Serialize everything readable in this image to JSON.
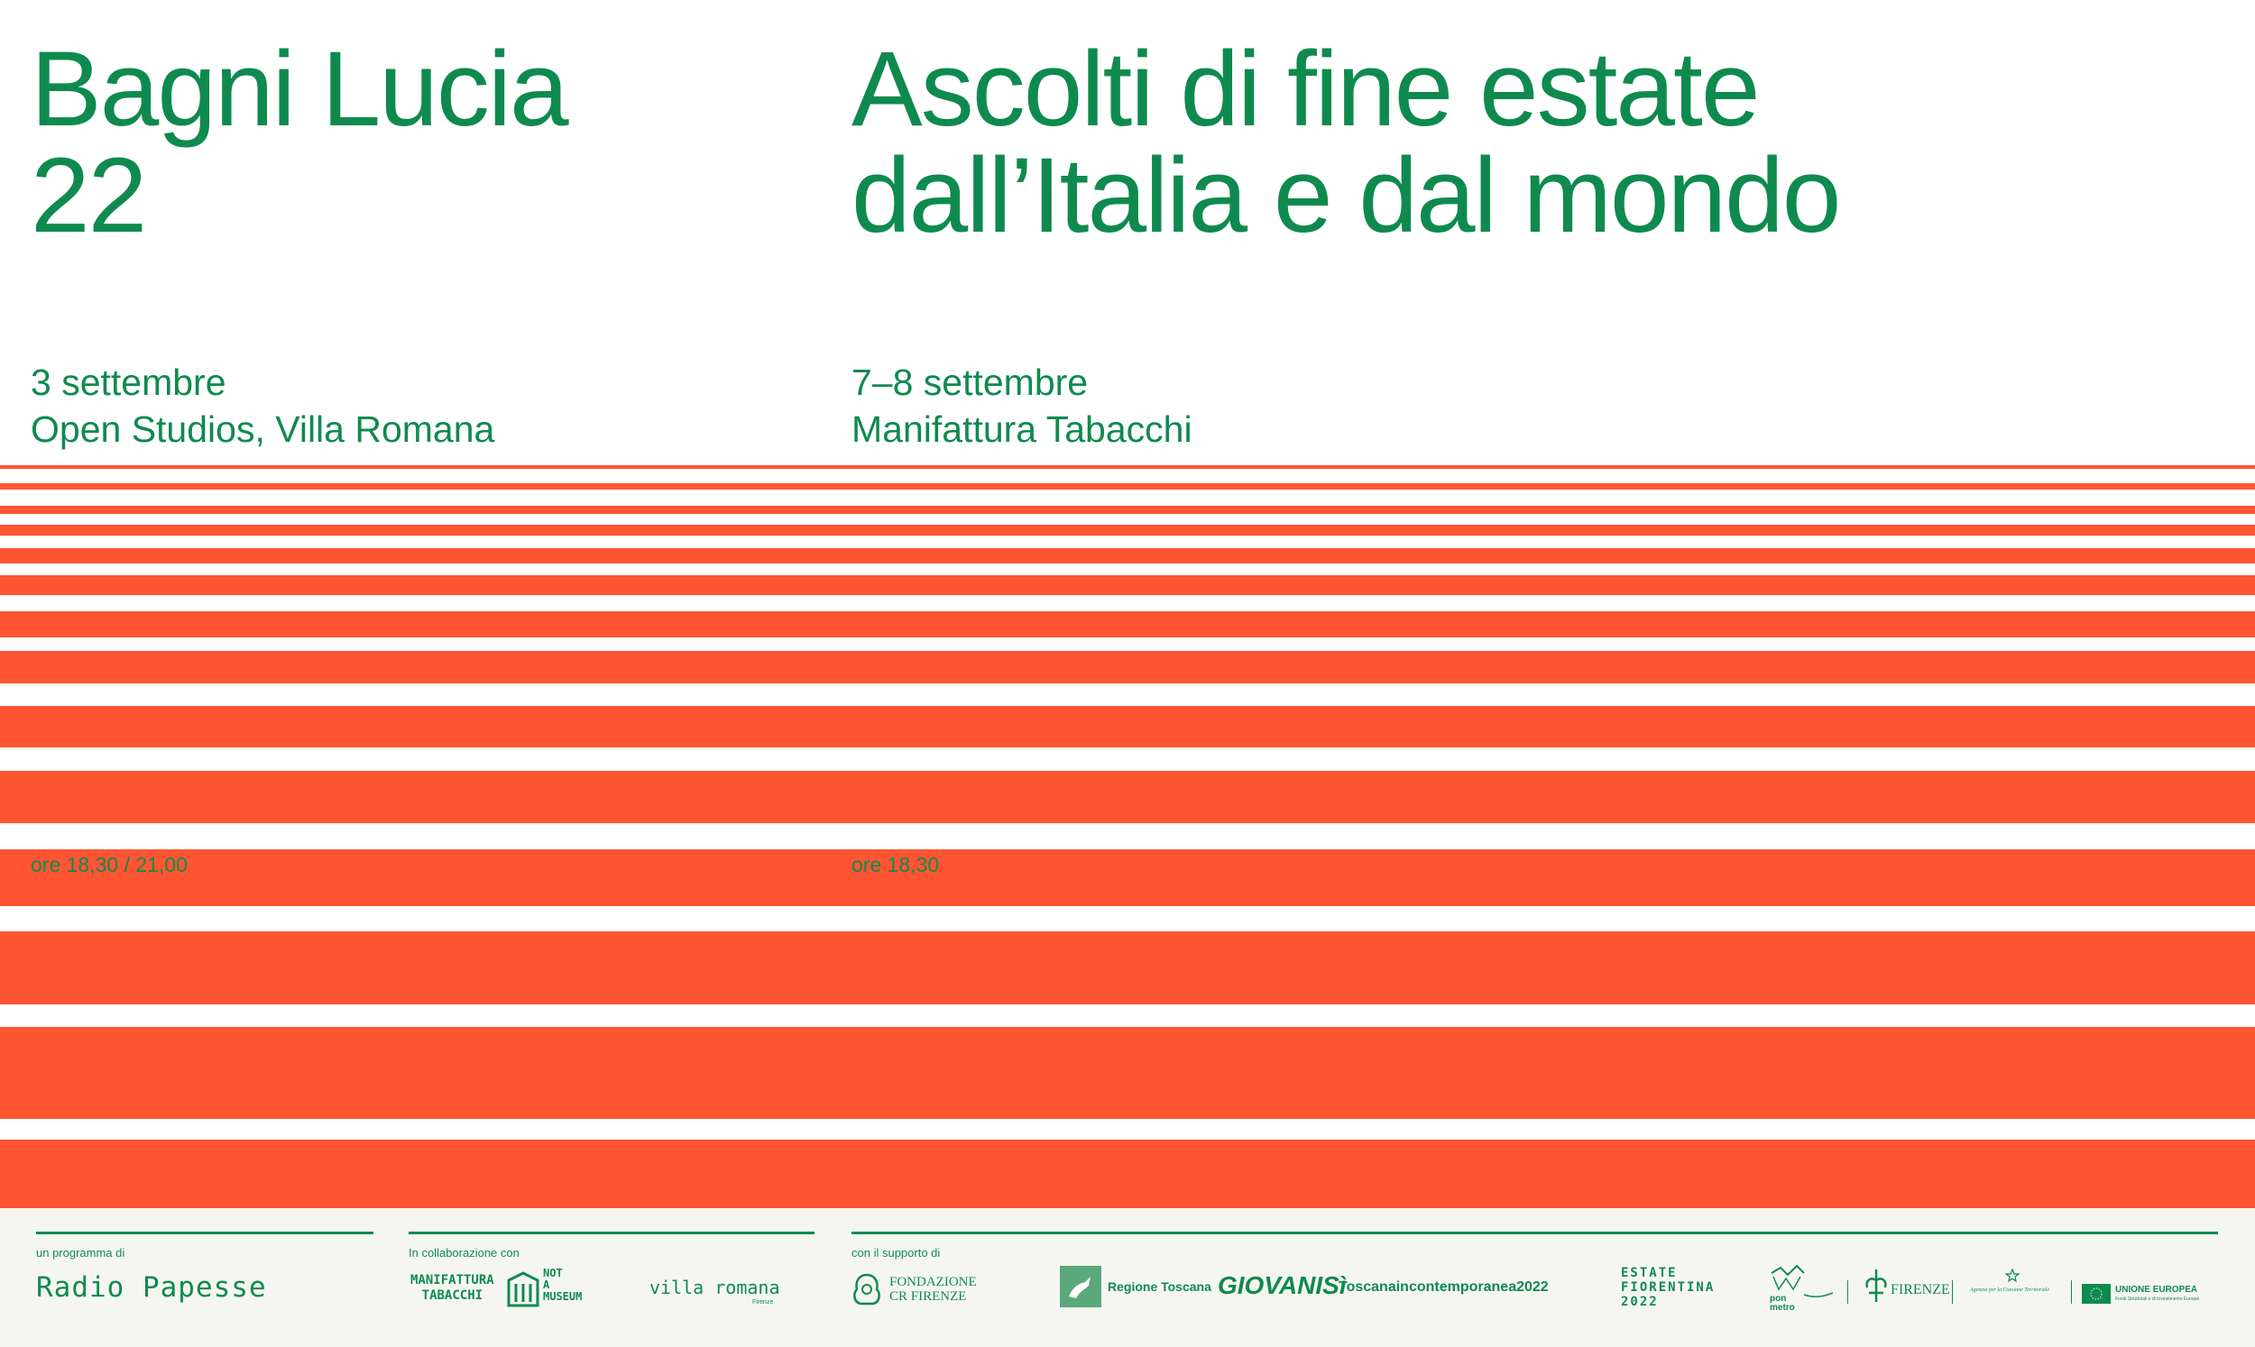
{
  "colors": {
    "green": "#0f8a4f",
    "orange": "#ff5533",
    "white": "#ffffff",
    "footer_bg": "#f6f6f1"
  },
  "left": {
    "title_line1": "Bagni Lucia",
    "title_line2": "22",
    "date": "3 settembre",
    "venue": "Open Studios, Villa Romana",
    "time": "ore 18,30 / 21,00"
  },
  "right": {
    "title_line1": "Ascolti di fine estate",
    "title_line2": "dall’Italia e dal mondo",
    "date": "7–8 settembre",
    "venue": "Manifattura Tabacchi",
    "time": "ore 18,30"
  },
  "footer": {
    "program_label": "un programma di",
    "program_logo": "Radio Papesse",
    "collab_label": "In collaborazione con",
    "collab_logo_1a": "MANIFATTURA",
    "collab_logo_1b": "TABACCHI",
    "collab_logo_2a": "NOT",
    "collab_logo_2b": "A",
    "collab_logo_2c": "MUSEUM",
    "collab_logo_3": "villa romana",
    "collab_logo_3_sub": "Firenze",
    "support_label": "con il supporto di",
    "support_fondazione_a": "FONDAZIONE",
    "support_fondazione_b": "CR FIRENZE",
    "support_regione": "Regione Toscana",
    "support_giovani": "GIOVANISì",
    "support_toscana": "Toscanaincontemporanea2022",
    "support_estate_a": "ESTATE",
    "support_estate_b": "FIORENTINA",
    "support_estate_c": "2022",
    "support_ponmetro": "pon metro",
    "support_comune": "FIRENZE",
    "support_agenzia": "Agenzia per la Coesione Territoriale",
    "support_ue": "UNIONE EUROPEA",
    "support_ue_sub": "Fondi Strutturali e di Investimento Europei"
  }
}
